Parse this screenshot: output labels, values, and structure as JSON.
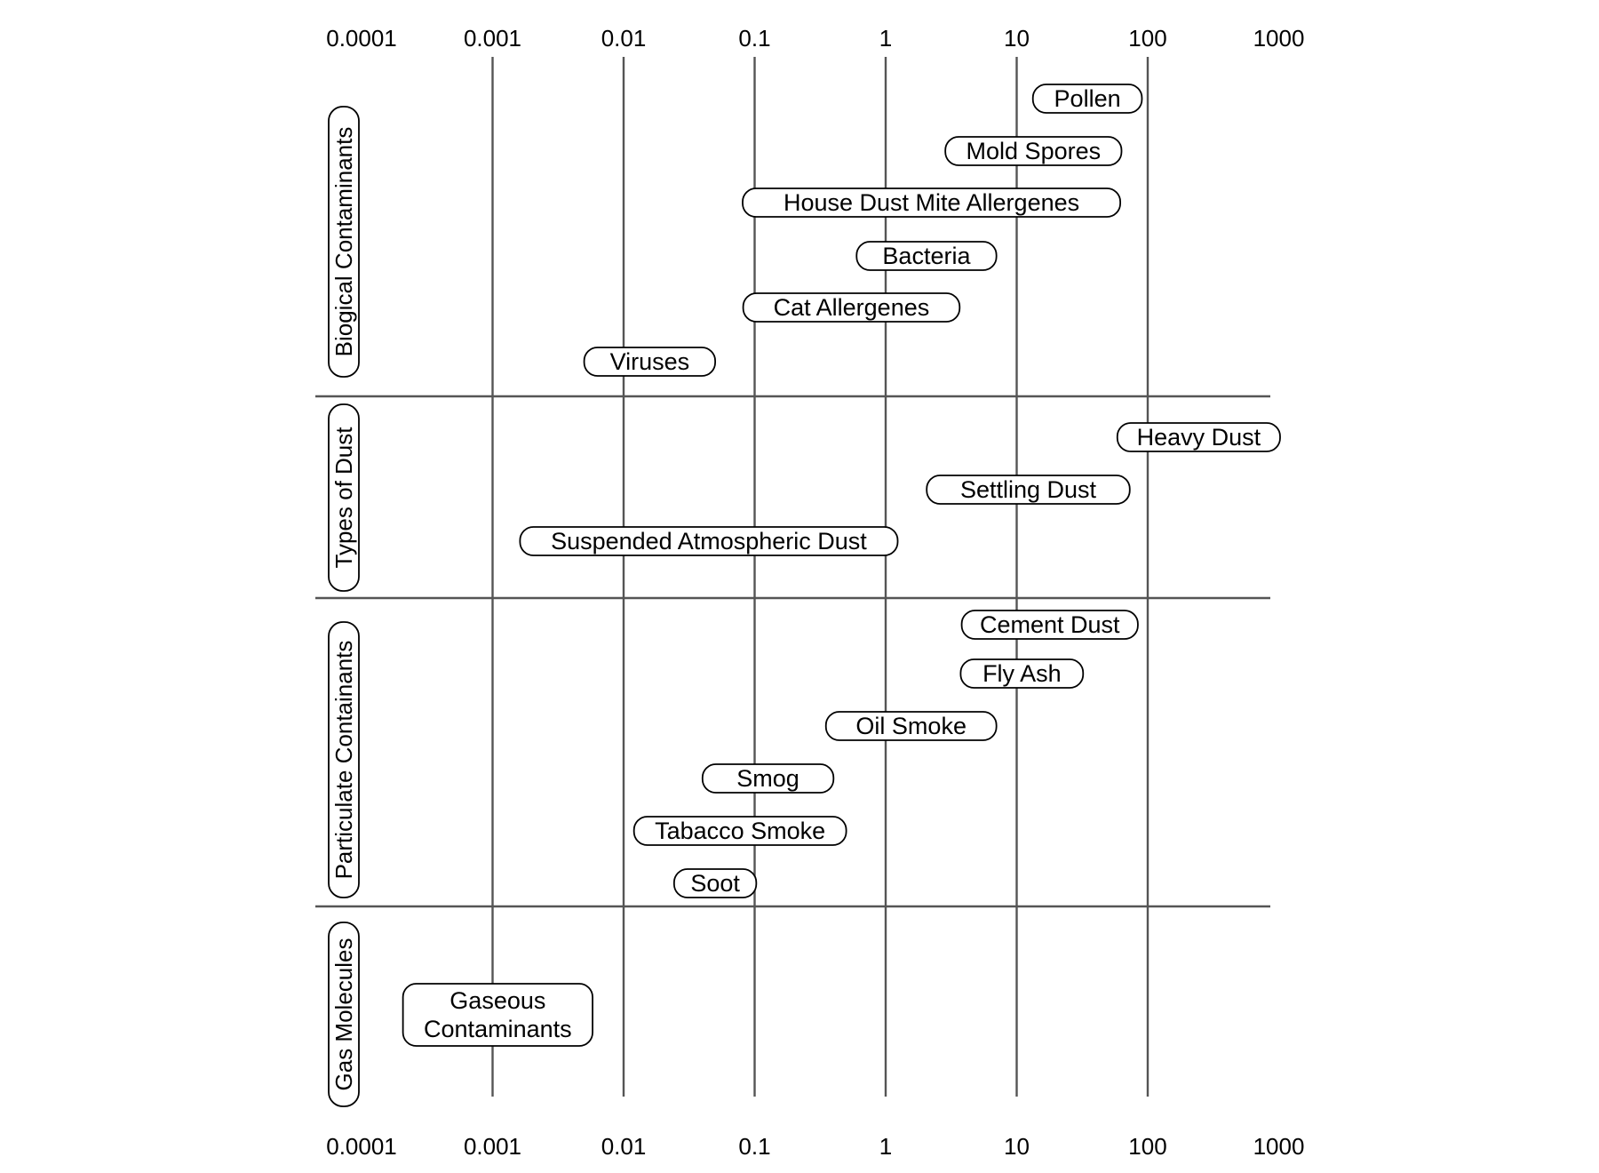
{
  "chart_data": {
    "type": "range",
    "x_scale": "log",
    "x_ticks": [
      "0.0001",
      "0.001",
      "0.01",
      "0.1",
      "1",
      "10",
      "100",
      "1000"
    ],
    "x_tick_values": [
      0.0001,
      0.001,
      0.01,
      0.1,
      1,
      10,
      100,
      1000
    ],
    "xlim": [
      0.0001,
      1000
    ],
    "grid": "vertical lines at 0.001–100; horizontal separators between groups",
    "categories": [
      {
        "name": "Biogical Contaminants",
        "items": [
          {
            "label": "Pollen",
            "range": [
              15,
              80
            ]
          },
          {
            "label": "Mold Spores",
            "range": [
              3,
              60
            ]
          },
          {
            "label": "House Dust Mite Allergenes",
            "range": [
              0.1,
              50
            ]
          },
          {
            "label": "Bacteria",
            "range": [
              0.6,
              7
            ]
          },
          {
            "label": "Cat Allergenes",
            "range": [
              0.1,
              3
            ]
          },
          {
            "label": "Viruses",
            "range": [
              0.005,
              0.05
            ]
          }
        ]
      },
      {
        "name": "Types of Dust",
        "items": [
          {
            "label": "Heavy Dust",
            "range": [
              60,
              1000
            ]
          },
          {
            "label": "Settling Dust",
            "range": [
              2.5,
              60
            ]
          },
          {
            "label": "Suspended Atmospheric Dust",
            "range": [
              0.002,
              1
            ]
          }
        ]
      },
      {
        "name": "Particulate Containants",
        "items": [
          {
            "label": "Cement Dust",
            "range": [
              4,
              80
            ]
          },
          {
            "label": "Fly Ash",
            "range": [
              4,
              30
            ]
          },
          {
            "label": "Oil Smoke",
            "range": [
              0.35,
              7
            ]
          },
          {
            "label": "Smog",
            "range": [
              0.04,
              0.4
            ]
          },
          {
            "label": "Tabacco Smoke",
            "range": [
              0.012,
              0.5
            ]
          },
          {
            "label": "Soot",
            "range": [
              0.025,
              0.1
            ]
          }
        ]
      },
      {
        "name": "Gas Molecules",
        "items": [
          {
            "label": "Gaseous\nContaminants",
            "range": [
              0.0003,
              0.004
            ]
          }
        ]
      }
    ]
  }
}
